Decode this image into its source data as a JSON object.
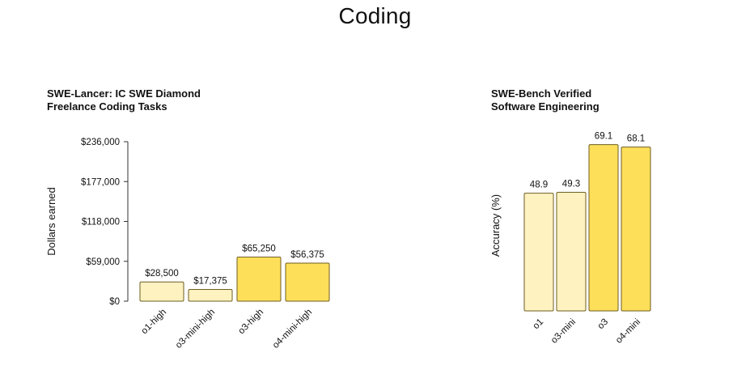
{
  "page": {
    "title": "Coding"
  },
  "chart_data": [
    {
      "type": "bar",
      "title_lines": [
        "SWE-Lancer: IC SWE Diamond",
        "Freelance Coding Tasks"
      ],
      "categories": [
        "o1-high",
        "o3-mini-high",
        "o3-high",
        "o4-mini-high"
      ],
      "values": [
        28500,
        17375,
        65250,
        56375
      ],
      "value_labels": [
        "$28,500",
        "$17,375",
        "$65,250",
        "$56,375"
      ],
      "highlight": [
        false,
        false,
        true,
        true
      ],
      "ylabel": "Dollars earned",
      "ylim": [
        0,
        236000
      ],
      "yticks": [
        0,
        59000,
        118000,
        177000,
        236000
      ],
      "ytick_labels": [
        "$0",
        "$59,000",
        "$118,000",
        "$177,000",
        "$236,000"
      ],
      "show_y_axis": true,
      "colors": {
        "light": "#FEF2C0",
        "dark": "#FEDF5A",
        "edge": "#6E5E22"
      }
    },
    {
      "type": "bar",
      "title_lines": [
        "SWE-Bench Verified",
        "Software Engineering"
      ],
      "categories": [
        "o1",
        "o3-mini",
        "o3",
        "o4-mini"
      ],
      "values": [
        48.9,
        49.3,
        69.1,
        68.1
      ],
      "value_labels": [
        "48.9",
        "49.3",
        "69.1",
        "68.1"
      ],
      "highlight": [
        false,
        false,
        true,
        true
      ],
      "ylabel": "Accuracy (%)",
      "ylim": [
        0,
        71
      ],
      "yticks": [],
      "ytick_labels": [],
      "show_y_axis": false,
      "colors": {
        "light": "#FEF2C0",
        "dark": "#FEDF5A",
        "edge": "#6E5E22"
      }
    }
  ]
}
